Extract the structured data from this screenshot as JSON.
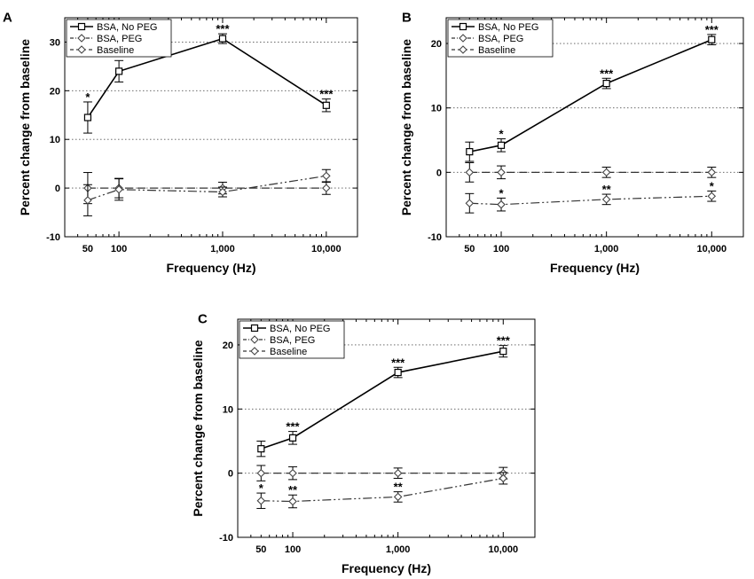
{
  "chart_data": [
    {
      "panel": "A",
      "type": "line",
      "xscale": "log",
      "xlabel": "Frequency (Hz)",
      "ylabel": "Percent change from baseline",
      "xlim": [
        30,
        20000
      ],
      "ylim": [
        -10,
        35
      ],
      "x": [
        50,
        100,
        1000,
        10000
      ],
      "xticklabels": [
        "50",
        "100",
        "1,000",
        "10,000"
      ],
      "yticks": [
        -10,
        0,
        10,
        20,
        30
      ],
      "yticklabels": [
        "-10",
        "0",
        "10",
        "20",
        "30"
      ],
      "gridlines": [
        0,
        10,
        20,
        30
      ],
      "series": [
        {
          "name": "BSA, No PEG",
          "values": [
            14.5,
            24,
            30.7,
            17
          ],
          "errors": [
            3.2,
            2.2,
            1,
            1.3
          ],
          "stars": [
            "*",
            "***",
            "***",
            "***"
          ],
          "star_pos": [
            "above",
            "above",
            "above",
            "above"
          ]
        },
        {
          "name": "BSA, PEG",
          "values": [
            -2.5,
            -0.3,
            -0.8,
            2.5
          ],
          "errors": [
            3.2,
            2.2,
            1,
            1.3
          ],
          "stars": [
            "",
            "",
            "",
            ""
          ],
          "star_pos": [
            "above",
            "above",
            "above",
            "above"
          ]
        },
        {
          "name": "Baseline",
          "values": [
            0,
            0,
            0,
            0
          ],
          "errors": [
            3.2,
            2,
            1.2,
            1.3
          ],
          "stars": [
            "",
            "",
            "",
            ""
          ],
          "star_pos": [
            "above",
            "above",
            "above",
            "above"
          ]
        }
      ]
    },
    {
      "panel": "B",
      "type": "line",
      "xscale": "log",
      "xlabel": "Frequency (Hz)",
      "ylabel": "Percent change from baseline",
      "xlim": [
        30,
        20000
      ],
      "ylim": [
        -10,
        24
      ],
      "x": [
        50,
        100,
        1000,
        10000
      ],
      "xticklabels": [
        "50",
        "100",
        "1,000",
        "10,000"
      ],
      "yticks": [
        -10,
        0,
        10,
        20
      ],
      "yticklabels": [
        "-10",
        "0",
        "10",
        "20"
      ],
      "gridlines": [
        0,
        10,
        20
      ],
      "series": [
        {
          "name": "BSA, No PEG",
          "values": [
            3.2,
            4.2,
            13.8,
            20.6
          ],
          "errors": [
            1.5,
            1,
            0.8,
            0.8
          ],
          "stars": [
            "",
            "*",
            "***",
            "***"
          ],
          "star_pos": [
            "above",
            "above",
            "above",
            "above"
          ]
        },
        {
          "name": "BSA, PEG",
          "values": [
            -4.8,
            -5,
            -4.2,
            -3.7
          ],
          "errors": [
            1.5,
            1,
            0.8,
            0.8
          ],
          "stars": [
            "",
            "*",
            "**",
            "*"
          ],
          "star_pos": [
            "above",
            "above",
            "above",
            "above"
          ]
        },
        {
          "name": "Baseline",
          "values": [
            0,
            0,
            0,
            0
          ],
          "errors": [
            1.5,
            1,
            0.8,
            0.8
          ],
          "stars": [
            "",
            "",
            "",
            ""
          ],
          "star_pos": [
            "above",
            "above",
            "above",
            "above"
          ]
        }
      ]
    },
    {
      "panel": "C",
      "type": "line",
      "xscale": "log",
      "xlabel": "Frequency (Hz)",
      "ylabel": "Percent change from baseline",
      "xlim": [
        30,
        20000
      ],
      "ylim": [
        -10,
        24
      ],
      "x": [
        50,
        100,
        1000,
        10000
      ],
      "xticklabels": [
        "50",
        "100",
        "1,000",
        "10,000"
      ],
      "yticks": [
        -10,
        0,
        10,
        20
      ],
      "yticklabels": [
        "-10",
        "0",
        "10",
        "20"
      ],
      "gridlines": [
        0,
        10,
        20
      ],
      "series": [
        {
          "name": "BSA, No PEG",
          "values": [
            3.8,
            5.5,
            15.7,
            19
          ],
          "errors": [
            1.2,
            1,
            0.8,
            0.9
          ],
          "stars": [
            "",
            "***",
            "***",
            "***"
          ],
          "star_pos": [
            "above",
            "above",
            "above",
            "above"
          ]
        },
        {
          "name": "BSA, PEG",
          "values": [
            -4.3,
            -4.4,
            -3.7,
            -0.8
          ],
          "errors": [
            1.2,
            1,
            0.8,
            0.9
          ],
          "stars": [
            "*",
            "**",
            "**",
            ""
          ],
          "star_pos": [
            "above",
            "above",
            "above",
            "above"
          ]
        },
        {
          "name": "Baseline",
          "values": [
            0,
            0,
            0,
            0
          ],
          "errors": [
            1.2,
            1,
            0.8,
            0.9
          ],
          "stars": [
            "",
            "",
            "",
            ""
          ],
          "star_pos": [
            "above",
            "above",
            "above",
            "above"
          ]
        }
      ]
    }
  ]
}
